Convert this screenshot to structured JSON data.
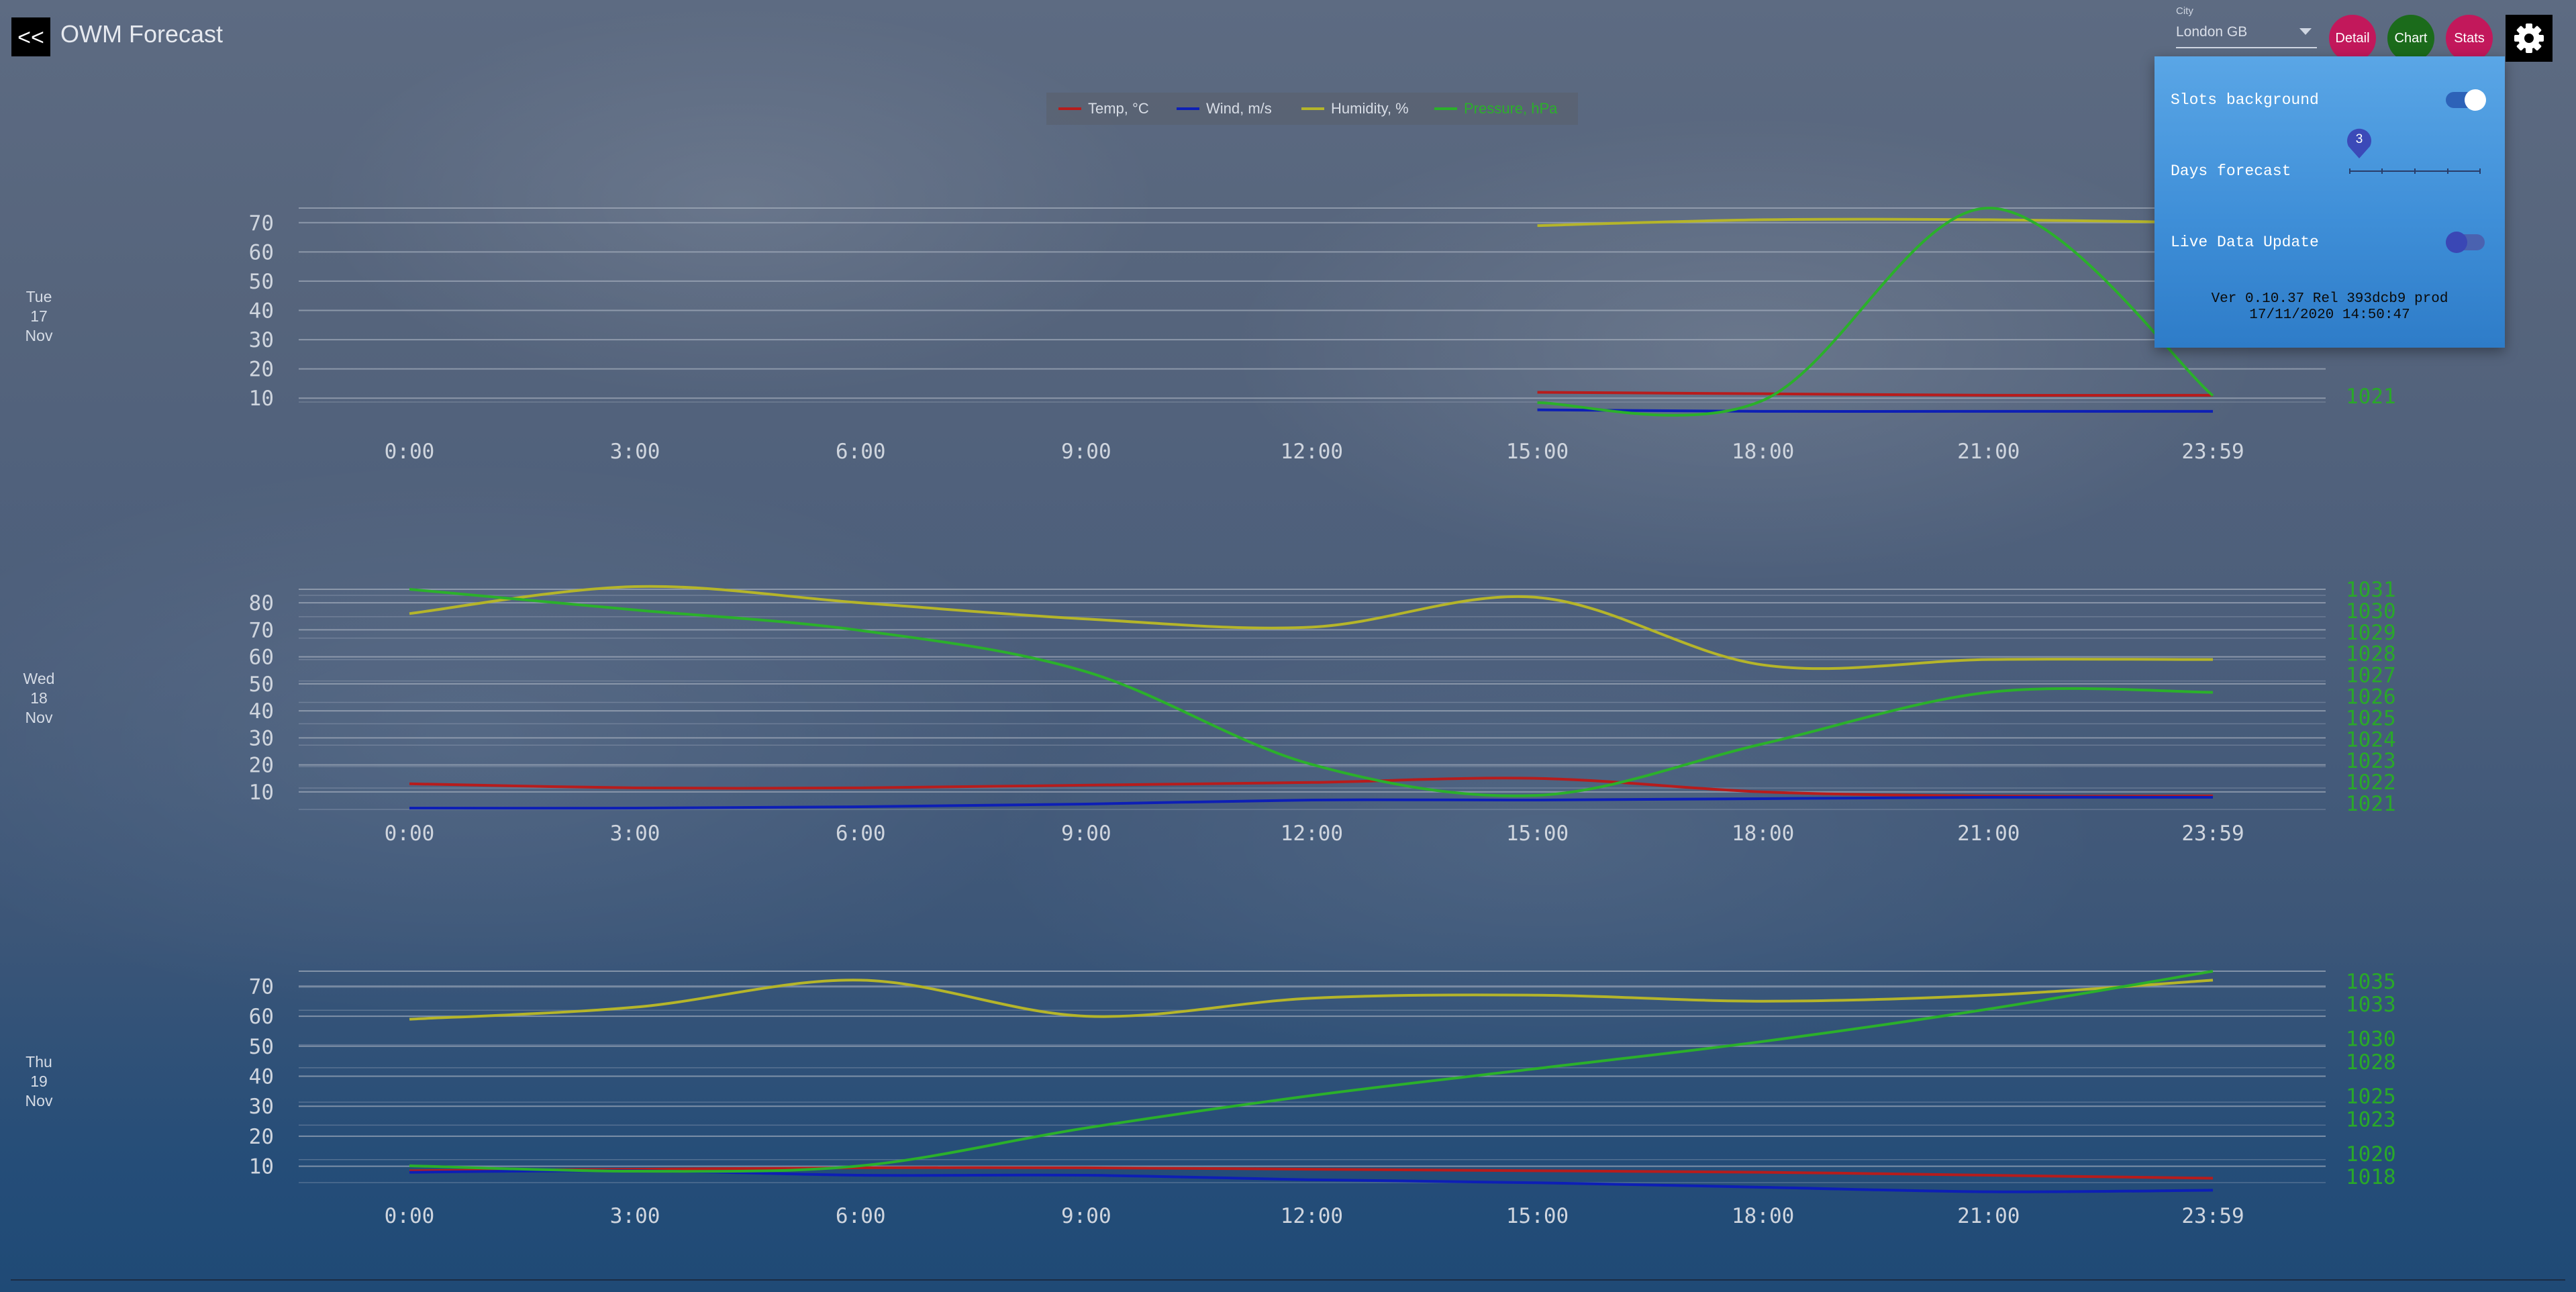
{
  "app": {
    "back_label": "<<",
    "title": "OWM Forecast"
  },
  "city": {
    "label": "City",
    "value": "London GB"
  },
  "nav": {
    "detail": "Detail",
    "chart": "Chart",
    "stats": "Stats"
  },
  "settings": {
    "slots_background_label": "Slots background",
    "slots_background_on": true,
    "days_forecast_label": "Days forecast",
    "days_forecast_value": "3",
    "live_update_label": "Live Data Update",
    "live_update_on": false,
    "version": "Ver 0.10.37 Rel 393dcb9 prod",
    "build_date": "17/11/2020 14:50:47"
  },
  "colors": {
    "temp": "#b71c1c",
    "wind": "#0d1fb5",
    "humidity": "#b5b52a",
    "pressure": "#2bb02b",
    "grid": "#aab3c2",
    "tick_text": "#cfd5de",
    "pressure_text": "#29a829"
  },
  "legend": [
    {
      "label": "Temp, °C",
      "series": "temp"
    },
    {
      "label": "Wind, m/s",
      "series": "wind"
    },
    {
      "label": "Humidity, %",
      "series": "humidity"
    },
    {
      "label": "Pressure, hPa",
      "series": "pressure"
    }
  ],
  "x_ticks": [
    "0:00",
    "3:00",
    "6:00",
    "9:00",
    "12:00",
    "15:00",
    "18:00",
    "21:00",
    "23:59"
  ],
  "days": [
    {
      "weekday": "Tue",
      "day": "17",
      "month": "Nov",
      "y_ticks": [
        "70",
        "60",
        "50",
        "40",
        "30",
        "20",
        "10"
      ],
      "pressure_ticks": [
        "1021"
      ]
    },
    {
      "weekday": "Wed",
      "day": "18",
      "month": "Nov",
      "y_ticks": [
        "80",
        "70",
        "60",
        "50",
        "40",
        "30",
        "20",
        "10"
      ],
      "pressure_ticks": [
        "1031",
        "1030",
        "1029",
        "1028",
        "1027",
        "1026",
        "1025",
        "1024",
        "1023",
        "1022",
        "1021"
      ]
    },
    {
      "weekday": "Thu",
      "day": "19",
      "month": "Nov",
      "y_ticks": [
        "70",
        "60",
        "50",
        "40",
        "30",
        "20",
        "10"
      ],
      "pressure_ticks": [
        "1035",
        "1033",
        "1030",
        "1028",
        "1025",
        "1023",
        "1020",
        "1018"
      ]
    }
  ],
  "chart_data": [
    {
      "type": "line",
      "title": "",
      "x": [
        "15:00",
        "18:00",
        "21:00",
        "23:59"
      ],
      "ylim": [
        5,
        75
      ],
      "series": [
        {
          "name": "Temp, °C",
          "key": "temp",
          "axis": "left",
          "values": [
            12,
            11.5,
            11,
            11
          ]
        },
        {
          "name": "Wind, m/s",
          "key": "wind",
          "axis": "left",
          "values": [
            6,
            5.5,
            5.5,
            5.5
          ]
        },
        {
          "name": "Humidity, %",
          "key": "humidity",
          "axis": "left",
          "values": [
            69,
            71,
            71,
            70
          ]
        },
        {
          "name": "Pressure, hPa",
          "key": "pressure",
          "axis": "right",
          "values": [
            1021.2,
            1021.3,
            1029.5,
            1021.5
          ]
        }
      ]
    },
    {
      "type": "line",
      "title": "",
      "x": [
        "0:00",
        "3:00",
        "6:00",
        "9:00",
        "12:00",
        "15:00",
        "18:00",
        "21:00",
        "23:59"
      ],
      "ylim": [
        5,
        85
      ],
      "series": [
        {
          "name": "Temp, °C",
          "key": "temp",
          "axis": "left",
          "values": [
            13,
            11.5,
            11.5,
            12.5,
            13.5,
            15,
            10,
            8.5,
            8.5
          ]
        },
        {
          "name": "Wind, m/s",
          "key": "wind",
          "axis": "left",
          "values": [
            4,
            4,
            4.5,
            5.5,
            7,
            7,
            7.5,
            8,
            8
          ]
        },
        {
          "name": "Humidity, %",
          "key": "humidity",
          "axis": "left",
          "values": [
            76,
            86,
            80,
            74,
            71,
            82,
            57,
            59,
            59
          ]
        },
        {
          "name": "Pressure, hPa",
          "key": "pressure",
          "axis": "right",
          "values": [
            1031,
            1030,
            1029,
            1027,
            1022.5,
            1021,
            1023.5,
            1026,
            1026
          ]
        }
      ]
    },
    {
      "type": "line",
      "title": "",
      "x": [
        "0:00",
        "3:00",
        "6:00",
        "9:00",
        "12:00",
        "15:00",
        "18:00",
        "21:00",
        "23:59"
      ],
      "ylim": [
        5,
        75
      ],
      "series": [
        {
          "name": "Temp, °C",
          "key": "temp",
          "axis": "left",
          "values": [
            8.5,
            9,
            9.5,
            9.5,
            9,
            8.5,
            8,
            7,
            6
          ]
        },
        {
          "name": "Wind, m/s",
          "key": "wind",
          "axis": "left",
          "values": [
            8,
            8.5,
            7,
            7,
            5.5,
            4.5,
            3,
            1.5,
            2
          ]
        },
        {
          "name": "Humidity, %",
          "key": "humidity",
          "axis": "left",
          "values": [
            59,
            63,
            72,
            60,
            66,
            67,
            65,
            67,
            72
          ]
        },
        {
          "name": "Pressure, hPa",
          "key": "pressure",
          "axis": "right",
          "values": [
            1017.5,
            1017,
            1017.5,
            1021,
            1024,
            1026.5,
            1029,
            1032,
            1035.5
          ]
        }
      ]
    }
  ]
}
